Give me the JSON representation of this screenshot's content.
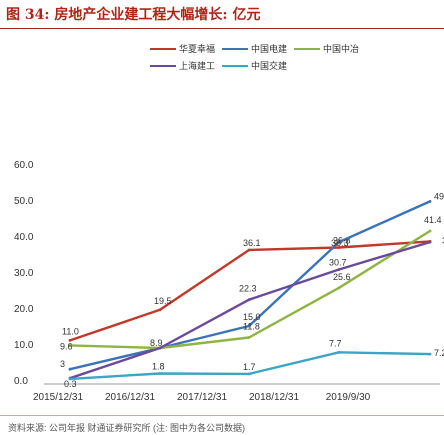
{
  "figure": {
    "title": "图 34:  房地产企业建工程大幅增长:  亿元",
    "source": "资料来源: 公司年报 财通证券研究所 (注: 图中为各公司数据)"
  },
  "chart_data": {
    "type": "line",
    "categories": [
      "2015/12/31",
      "2016/12/31",
      "2017/12/31",
      "2018/12/31",
      "2019/9/30"
    ],
    "ylim": [
      0,
      60
    ],
    "yticks": [
      "0.0",
      "10.0",
      "20.0",
      "30.0",
      "40.0",
      "50.0",
      "60.0"
    ],
    "grid": false,
    "legend_position": "top",
    "series": [
      {
        "name": "华夏幸福",
        "color": "#c0392b",
        "values": [
          11.0,
          19.5,
          36.1,
          36.8,
          38.5
        ],
        "labels": [
          "11.0",
          "19.5",
          "36.1",
          "36.8",
          "38.5"
        ]
      },
      {
        "name": "中国电建",
        "color": "#3a73b8",
        "values": [
          3.0,
          8.9,
          15.0,
          38.3,
          49.6
        ],
        "labels": [
          "3",
          "8.9",
          "15.0",
          "38.3",
          "49.6"
        ]
      },
      {
        "name": "中国中冶",
        "color": "#8fb446",
        "values": [
          9.6,
          8.9,
          11.8,
          25.6,
          41.4
        ],
        "labels": [
          "9.6",
          "",
          "11.8",
          "25.6",
          "41.4"
        ]
      },
      {
        "name": "上海建工",
        "color": "#6b4a9b",
        "values": [
          0.5,
          8.9,
          22.3,
          30.7,
          38.3
        ],
        "labels": [
          "",
          "",
          "22.3",
          "30.7",
          "38.3"
        ]
      },
      {
        "name": "中国交建",
        "color": "#3da5c4",
        "values": [
          0.3,
          1.8,
          1.7,
          7.7,
          7.2
        ],
        "labels": [
          "0.3",
          "1.8",
          "1.7",
          "7.7",
          "7.2"
        ]
      }
    ]
  }
}
